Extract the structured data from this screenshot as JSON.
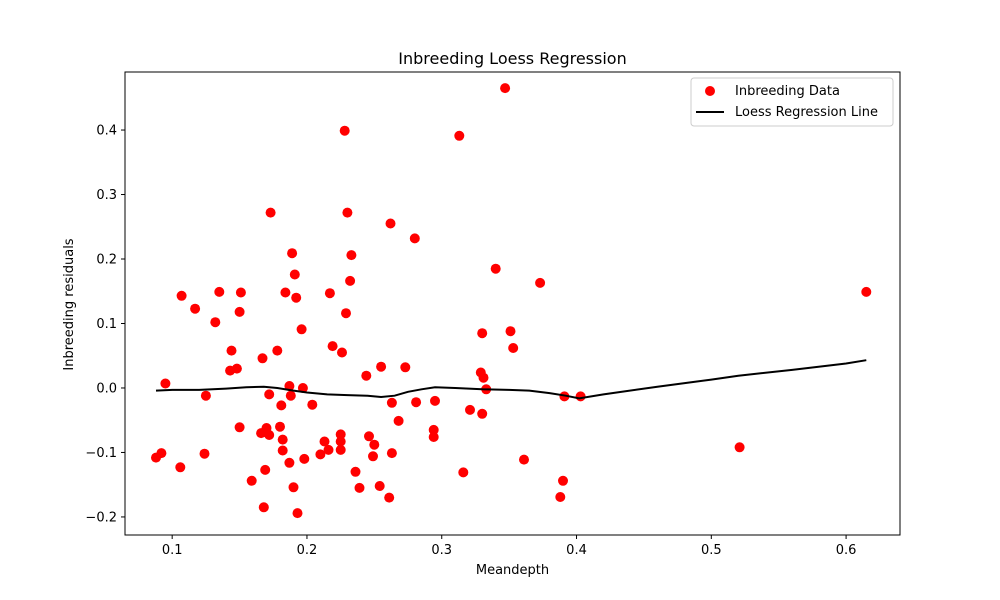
{
  "chart_data": {
    "type": "scatter",
    "title": "Inbreeding Loess Regression",
    "xlabel": "Meandepth",
    "ylabel": "Inbreeding residuals",
    "xlim": [
      0.065,
      0.64
    ],
    "ylim": [
      -0.228,
      0.49
    ],
    "xticks": [
      0.1,
      0.2,
      0.3,
      0.4,
      0.5,
      0.6
    ],
    "xtick_labels": [
      "0.1",
      "0.2",
      "0.3",
      "0.4",
      "0.5",
      "0.6"
    ],
    "yticks": [
      -0.2,
      -0.1,
      0.0,
      0.1,
      0.2,
      0.3,
      0.4
    ],
    "ytick_labels": [
      "−0.2",
      "−0.1",
      "0.0",
      "0.1",
      "0.2",
      "0.3",
      "0.4"
    ],
    "grid": false,
    "legend_position": "top-right",
    "colors": {
      "scatter": "#ff0000",
      "line": "#000000"
    },
    "series": [
      {
        "name": "Inbreeding Data",
        "kind": "scatter",
        "points": [
          [
            0.088,
            -0.108
          ],
          [
            0.092,
            -0.101
          ],
          [
            0.095,
            0.007
          ],
          [
            0.106,
            -0.123
          ],
          [
            0.107,
            0.143
          ],
          [
            0.117,
            0.123
          ],
          [
            0.124,
            -0.102
          ],
          [
            0.125,
            -0.012
          ],
          [
            0.132,
            0.102
          ],
          [
            0.135,
            0.149
          ],
          [
            0.143,
            0.027
          ],
          [
            0.144,
            0.058
          ],
          [
            0.148,
            0.03
          ],
          [
            0.15,
            0.118
          ],
          [
            0.15,
            -0.061
          ],
          [
            0.151,
            0.148
          ],
          [
            0.159,
            -0.144
          ],
          [
            0.166,
            -0.07
          ],
          [
            0.167,
            0.046
          ],
          [
            0.168,
            -0.185
          ],
          [
            0.169,
            -0.127
          ],
          [
            0.17,
            -0.062
          ],
          [
            0.172,
            -0.01
          ],
          [
            0.172,
            -0.073
          ],
          [
            0.173,
            0.272
          ],
          [
            0.178,
            0.058
          ],
          [
            0.18,
            -0.06
          ],
          [
            0.181,
            -0.027
          ],
          [
            0.182,
            -0.097
          ],
          [
            0.182,
            -0.08
          ],
          [
            0.184,
            0.148
          ],
          [
            0.187,
            0.003
          ],
          [
            0.187,
            -0.116
          ],
          [
            0.188,
            -0.012
          ],
          [
            0.189,
            0.209
          ],
          [
            0.19,
            -0.154
          ],
          [
            0.191,
            0.176
          ],
          [
            0.192,
            0.14
          ],
          [
            0.193,
            -0.194
          ],
          [
            0.196,
            0.091
          ],
          [
            0.197,
            0.0
          ],
          [
            0.198,
            -0.11
          ],
          [
            0.204,
            -0.026
          ],
          [
            0.21,
            -0.103
          ],
          [
            0.213,
            -0.083
          ],
          [
            0.216,
            -0.096
          ],
          [
            0.217,
            0.147
          ],
          [
            0.219,
            0.065
          ],
          [
            0.225,
            -0.072
          ],
          [
            0.225,
            -0.083
          ],
          [
            0.226,
            0.055
          ],
          [
            0.225,
            -0.096
          ],
          [
            0.228,
            0.399
          ],
          [
            0.229,
            0.116
          ],
          [
            0.23,
            0.272
          ],
          [
            0.232,
            0.166
          ],
          [
            0.233,
            0.206
          ],
          [
            0.236,
            -0.13
          ],
          [
            0.239,
            -0.155
          ],
          [
            0.244,
            0.019
          ],
          [
            0.246,
            -0.075
          ],
          [
            0.249,
            -0.106
          ],
          [
            0.25,
            -0.088
          ],
          [
            0.254,
            -0.152
          ],
          [
            0.255,
            0.033
          ],
          [
            0.261,
            -0.17
          ],
          [
            0.262,
            0.255
          ],
          [
            0.263,
            -0.023
          ],
          [
            0.263,
            -0.101
          ],
          [
            0.268,
            -0.051
          ],
          [
            0.273,
            0.032
          ],
          [
            0.28,
            0.232
          ],
          [
            0.281,
            -0.022
          ],
          [
            0.294,
            -0.065
          ],
          [
            0.294,
            -0.076
          ],
          [
            0.295,
            -0.02
          ],
          [
            0.313,
            0.391
          ],
          [
            0.316,
            -0.131
          ],
          [
            0.321,
            -0.034
          ],
          [
            0.329,
            0.024
          ],
          [
            0.33,
            0.085
          ],
          [
            0.33,
            -0.04
          ],
          [
            0.331,
            0.016
          ],
          [
            0.333,
            -0.002
          ],
          [
            0.34,
            0.185
          ],
          [
            0.347,
            0.465
          ],
          [
            0.351,
            0.088
          ],
          [
            0.353,
            0.062
          ],
          [
            0.361,
            -0.111
          ],
          [
            0.373,
            0.163
          ],
          [
            0.388,
            -0.169
          ],
          [
            0.39,
            -0.144
          ],
          [
            0.391,
            -0.013
          ],
          [
            0.403,
            -0.013
          ],
          [
            0.521,
            -0.092
          ],
          [
            0.615,
            0.149
          ]
        ]
      },
      {
        "name": "Loess Regression Line",
        "kind": "line",
        "points": [
          [
            0.088,
            -0.004
          ],
          [
            0.1,
            -0.003
          ],
          [
            0.12,
            -0.003
          ],
          [
            0.14,
            -0.001
          ],
          [
            0.155,
            0.001
          ],
          [
            0.168,
            0.002
          ],
          [
            0.178,
            0.0
          ],
          [
            0.19,
            -0.004
          ],
          [
            0.2,
            -0.007
          ],
          [
            0.215,
            -0.01
          ],
          [
            0.23,
            -0.011
          ],
          [
            0.245,
            -0.012
          ],
          [
            0.255,
            -0.014
          ],
          [
            0.265,
            -0.012
          ],
          [
            0.275,
            -0.006
          ],
          [
            0.285,
            -0.002
          ],
          [
            0.295,
            0.001
          ],
          [
            0.31,
            0.0
          ],
          [
            0.33,
            -0.002
          ],
          [
            0.35,
            -0.003
          ],
          [
            0.365,
            -0.004
          ],
          [
            0.38,
            -0.008
          ],
          [
            0.392,
            -0.012
          ],
          [
            0.402,
            -0.016
          ],
          [
            0.42,
            -0.01
          ],
          [
            0.46,
            0.002
          ],
          [
            0.5,
            0.013
          ],
          [
            0.52,
            0.019
          ],
          [
            0.56,
            0.028
          ],
          [
            0.6,
            0.038
          ],
          [
            0.615,
            0.043
          ]
        ]
      }
    ]
  }
}
